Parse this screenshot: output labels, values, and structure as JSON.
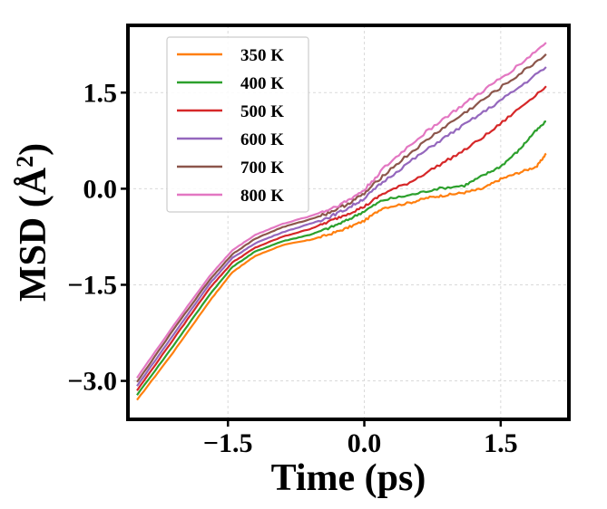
{
  "chart_data": {
    "type": "line",
    "xlabel": "Time (ps)",
    "ylabel": "MSD (Å²)",
    "ylabel_main": "MSD (Å",
    "ylabel_sup": "2",
    "ylabel_close": ")",
    "xlim": [
      -2.6,
      2.25
    ],
    "ylim": [
      -3.6,
      2.55
    ],
    "xticks": [
      -1.5,
      0.0,
      1.5
    ],
    "xtick_labels": [
      "−1.5",
      "0.0",
      "1.5"
    ],
    "yticks": [
      -3.0,
      -1.5,
      0.0,
      1.5
    ],
    "ytick_labels": [
      "−3.0",
      "−1.5",
      "0.0",
      "1.5"
    ],
    "grid": true,
    "legend_position": "upper-left",
    "series": [
      {
        "name": "350 K",
        "color": "#ff7f0e",
        "x": [
          -2.5,
          -2.1,
          -1.7,
          -1.45,
          -1.2,
          -0.9,
          -0.6,
          -0.4,
          -0.2,
          0.0,
          0.2,
          0.5,
          0.7,
          0.9,
          1.1,
          1.3,
          1.5,
          1.7,
          1.9,
          2.0
        ],
        "y": [
          -3.3,
          -2.55,
          -1.75,
          -1.3,
          -1.05,
          -0.88,
          -0.8,
          -0.72,
          -0.62,
          -0.5,
          -0.3,
          -0.22,
          -0.14,
          -0.1,
          -0.06,
          0.0,
          0.15,
          0.25,
          0.35,
          0.55
        ]
      },
      {
        "name": "400 K",
        "color": "#2ca02c",
        "x": [
          -2.5,
          -2.1,
          -1.7,
          -1.45,
          -1.2,
          -0.9,
          -0.6,
          -0.4,
          -0.2,
          0.0,
          0.2,
          0.5,
          0.8,
          1.1,
          1.3,
          1.5,
          1.7,
          1.85,
          2.0
        ],
        "y": [
          -3.22,
          -2.45,
          -1.65,
          -1.22,
          -0.98,
          -0.82,
          -0.72,
          -0.62,
          -0.5,
          -0.35,
          -0.18,
          -0.1,
          0.0,
          0.05,
          0.2,
          0.35,
          0.6,
          0.85,
          1.05
        ]
      },
      {
        "name": "500 K",
        "color": "#d62728",
        "x": [
          -2.5,
          -2.1,
          -1.7,
          -1.45,
          -1.2,
          -0.9,
          -0.6,
          -0.4,
          -0.2,
          0.0,
          0.2,
          0.5,
          0.8,
          1.1,
          1.4,
          1.7,
          2.0
        ],
        "y": [
          -3.15,
          -2.35,
          -1.55,
          -1.15,
          -0.92,
          -0.75,
          -0.63,
          -0.52,
          -0.4,
          -0.28,
          -0.08,
          0.1,
          0.35,
          0.6,
          0.9,
          1.25,
          1.6
        ]
      },
      {
        "name": "600 K",
        "color": "#9467bd",
        "x": [
          -2.5,
          -2.1,
          -1.7,
          -1.45,
          -1.2,
          -0.9,
          -0.6,
          -0.4,
          -0.2,
          0.0,
          0.2,
          0.5,
          0.8,
          1.1,
          1.4,
          1.7,
          2.0
        ],
        "y": [
          -3.08,
          -2.28,
          -1.48,
          -1.08,
          -0.85,
          -0.68,
          -0.55,
          -0.45,
          -0.32,
          -0.15,
          0.1,
          0.42,
          0.72,
          1.0,
          1.28,
          1.58,
          1.9
        ]
      },
      {
        "name": "700 K",
        "color": "#8c564b",
        "x": [
          -2.5,
          -2.1,
          -1.7,
          -1.45,
          -1.2,
          -0.9,
          -0.6,
          -0.4,
          -0.2,
          0.0,
          0.2,
          0.5,
          0.8,
          1.1,
          1.4,
          1.7,
          2.0
        ],
        "y": [
          -3.02,
          -2.2,
          -1.42,
          -1.02,
          -0.78,
          -0.6,
          -0.48,
          -0.38,
          -0.25,
          -0.08,
          0.2,
          0.55,
          0.88,
          1.18,
          1.48,
          1.78,
          2.1
        ]
      },
      {
        "name": "800 K",
        "color": "#e377c2",
        "x": [
          -2.5,
          -2.1,
          -1.7,
          -1.45,
          -1.2,
          -0.9,
          -0.6,
          -0.4,
          -0.2,
          0.0,
          0.2,
          0.5,
          0.8,
          1.1,
          1.4,
          1.7,
          2.0
        ],
        "y": [
          -2.95,
          -2.14,
          -1.36,
          -0.96,
          -0.72,
          -0.55,
          -0.43,
          -0.33,
          -0.2,
          -0.02,
          0.3,
          0.68,
          1.02,
          1.32,
          1.62,
          1.93,
          2.28
        ]
      }
    ]
  }
}
